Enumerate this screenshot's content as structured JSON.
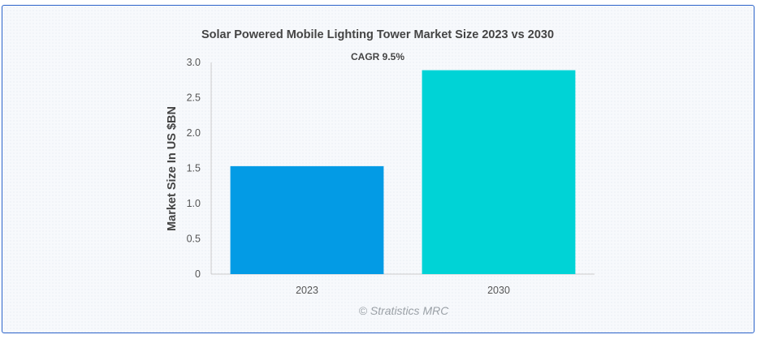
{
  "chart_data": {
    "type": "bar",
    "title": "Solar Powered Mobile Lighting Tower Market Size 2023 vs 2030",
    "subtitle": "CAGR 9.5%",
    "xlabel": "",
    "ylabel": "Market Size In US $BN",
    "categories": [
      "2023",
      "2030"
    ],
    "values": [
      1.53,
      2.89
    ],
    "colors": [
      "#039be5",
      "#00d3d6"
    ],
    "ylim": [
      0,
      3.0
    ],
    "yticks": [
      "0",
      "0.5",
      "1.0",
      "1.5",
      "2.0",
      "2.5",
      "3.0"
    ],
    "grid": false,
    "legend": "none"
  },
  "credit": "© Stratistics MRC"
}
